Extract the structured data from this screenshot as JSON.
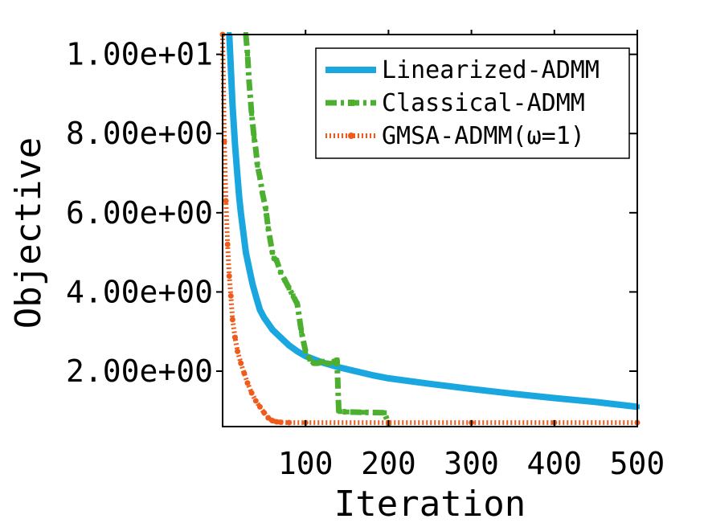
{
  "chart_data": {
    "type": "line",
    "title": "",
    "xlabel": "Iteration",
    "ylabel": "Objective",
    "xlim": [
      0,
      500
    ],
    "ylim": [
      0.6,
      10.5
    ],
    "xticks": [
      100,
      200,
      300,
      400,
      500
    ],
    "xtick_labels": [
      "100",
      "200",
      "300",
      "400",
      "500"
    ],
    "yticks": [
      2.0,
      4.0,
      6.0,
      8.0,
      10.0
    ],
    "ytick_labels": [
      "2.00e+00",
      "4.00e+00",
      "6.00e+00",
      "8.00e+00",
      "1.00e+01"
    ],
    "legend_position": "top-right",
    "series": [
      {
        "name": "Linearized-ADMM",
        "color": "#1aa7e0",
        "style": "solid",
        "x": [
          8,
          12,
          15,
          18,
          20,
          22,
          25,
          28,
          32,
          36,
          40,
          45,
          50,
          60,
          70,
          80,
          90,
          100,
          110,
          120,
          140,
          160,
          180,
          200,
          250,
          300,
          350,
          400,
          450,
          500
        ],
        "y": [
          10.5,
          8.7,
          7.7,
          6.9,
          6.4,
          6.0,
          5.5,
          5.0,
          4.6,
          4.2,
          3.9,
          3.55,
          3.35,
          3.05,
          2.85,
          2.65,
          2.5,
          2.38,
          2.3,
          2.22,
          2.1,
          2.0,
          1.9,
          1.82,
          1.68,
          1.55,
          1.43,
          1.32,
          1.22,
          1.1
        ]
      },
      {
        "name": "Classical-ADMM",
        "color": "#4caf30",
        "style": "dashdot",
        "x": [
          28,
          30,
          32,
          35,
          38,
          40,
          42,
          45,
          48,
          52,
          55,
          60,
          62,
          65,
          70,
          75,
          80,
          85,
          90,
          95,
          100,
          105,
          110,
          115,
          120,
          125,
          130,
          135,
          138,
          140,
          142,
          150,
          170,
          195,
          200
        ],
        "y": [
          10.5,
          10.0,
          9.3,
          8.5,
          7.9,
          7.6,
          7.2,
          6.9,
          6.5,
          6.1,
          5.6,
          5.0,
          4.85,
          4.8,
          4.5,
          4.3,
          4.1,
          3.9,
          3.7,
          3.0,
          2.5,
          2.3,
          2.2,
          2.2,
          2.25,
          2.2,
          2.2,
          2.25,
          2.28,
          1.0,
          0.98,
          0.97,
          0.96,
          0.95,
          0.68
        ]
      },
      {
        "name": "GMSA-ADMM(ω=1)",
        "color": "#f05a1a",
        "style": "dotted",
        "x": [
          0,
          2,
          4,
          6,
          8,
          10,
          12,
          15,
          18,
          22,
          26,
          30,
          35,
          40,
          45,
          50,
          55,
          60,
          65,
          70,
          80,
          100,
          200,
          300,
          400,
          500
        ],
        "y": [
          10.5,
          7.8,
          6.3,
          5.2,
          4.4,
          3.9,
          3.3,
          2.85,
          2.5,
          2.2,
          1.95,
          1.7,
          1.45,
          1.25,
          1.1,
          0.95,
          0.82,
          0.75,
          0.72,
          0.71,
          0.7,
          0.7,
          0.7,
          0.7,
          0.7,
          0.7
        ]
      }
    ]
  }
}
